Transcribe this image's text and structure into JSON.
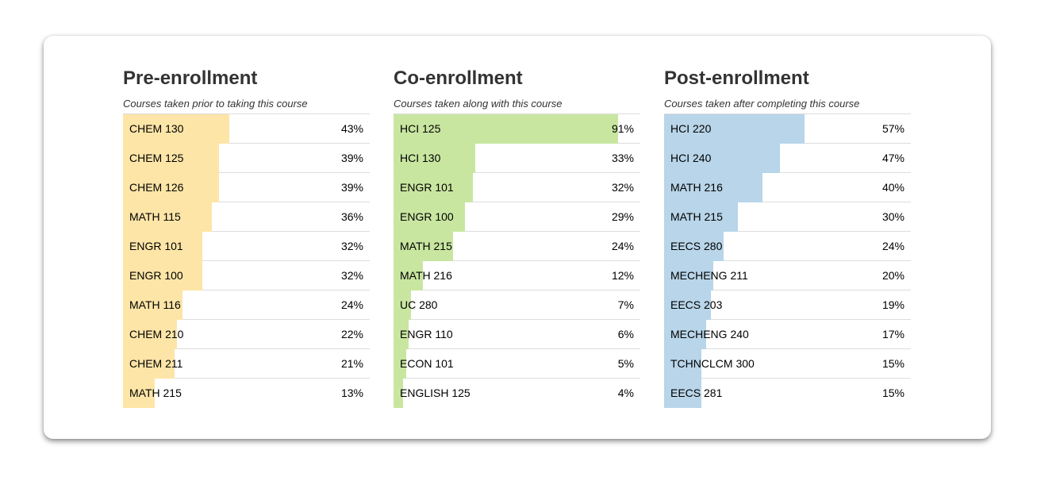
{
  "chart_data": [
    {
      "type": "bar",
      "orientation": "horizontal",
      "title": "Pre-enrollment",
      "subtitle": "Courses taken prior to taking this course",
      "color": "#fde5a7",
      "xlim": [
        0,
        100
      ],
      "categories": [
        "CHEM 130",
        "CHEM 125",
        "CHEM 126",
        "MATH 115",
        "ENGR 101",
        "ENGR 100",
        "MATH 116",
        "CHEM 210",
        "CHEM 211",
        "MATH 215"
      ],
      "values": [
        43,
        39,
        39,
        36,
        32,
        32,
        24,
        22,
        21,
        13
      ],
      "value_labels": [
        "43%",
        "39%",
        "39%",
        "36%",
        "32%",
        "32%",
        "24%",
        "22%",
        "21%",
        "13%"
      ]
    },
    {
      "type": "bar",
      "orientation": "horizontal",
      "title": "Co-enrollment",
      "subtitle": "Courses taken along with this course",
      "color": "#c8e6a0",
      "xlim": [
        0,
        100
      ],
      "categories": [
        "HCI 125",
        "HCI 130",
        "ENGR 101",
        "ENGR 100",
        "MATH 215",
        "MATH 216",
        "UC 280",
        "ENGR 110",
        "ECON 101",
        "ENGLISH 125"
      ],
      "values": [
        91,
        33,
        32,
        29,
        24,
        12,
        7,
        6,
        5,
        4
      ],
      "value_labels": [
        "91%",
        "33%",
        "32%",
        "29%",
        "24%",
        "12%",
        "7%",
        "6%",
        "5%",
        "4%"
      ]
    },
    {
      "type": "bar",
      "orientation": "horizontal",
      "title": "Post-enrollment",
      "subtitle": "Courses taken after completing this course",
      "color": "#b8d5e9",
      "xlim": [
        0,
        100
      ],
      "categories": [
        "HCI 220",
        "HCI 240",
        "MATH 216",
        "MATH 215",
        "EECS 280",
        "MECHENG 211",
        "EECS 203",
        "MECHENG 240",
        "TCHNCLCM 300",
        "EECS 281"
      ],
      "values": [
        57,
        47,
        40,
        30,
        24,
        20,
        19,
        17,
        15,
        15
      ],
      "value_labels": [
        "57%",
        "47%",
        "40%",
        "30%",
        "24%",
        "20%",
        "19%",
        "17%",
        "15%",
        "15%"
      ]
    }
  ]
}
